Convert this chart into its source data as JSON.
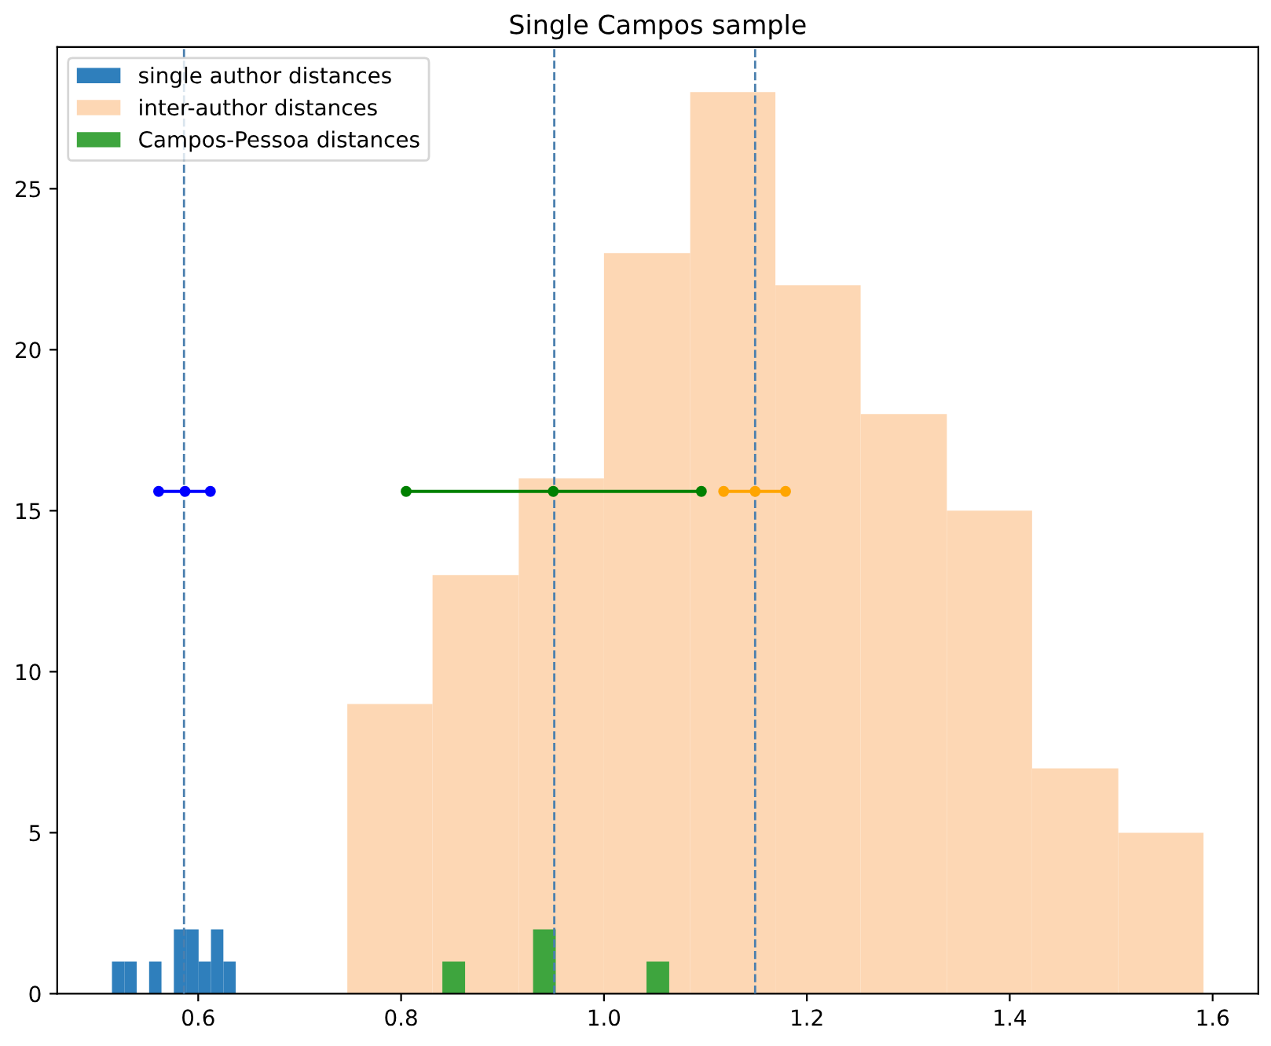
{
  "chart_data": {
    "type": "histogram",
    "title": "Single Campos sample",
    "series": [
      {
        "name": "single author distances",
        "color": "#2f7fbc",
        "bins": [
          0.515,
          0.5272,
          0.5394,
          0.5516,
          0.5638,
          0.576,
          0.5882,
          0.6004,
          0.6126,
          0.6248,
          0.637
        ],
        "values": [
          1,
          1,
          0,
          1,
          0,
          2,
          2,
          1,
          2,
          1
        ]
      },
      {
        "name": "inter-author distances",
        "color": "#fdd7b4",
        "bins": [
          0.747,
          0.831,
          0.916,
          1.0,
          1.085,
          1.169,
          1.253,
          1.338,
          1.422,
          1.507,
          1.591
        ],
        "values": [
          9,
          13,
          16,
          23,
          28,
          22,
          18,
          15,
          7,
          5
        ]
      },
      {
        "name": "Campos-Pessoa distances",
        "color": "#3ea53e",
        "bins": [
          0.8407,
          0.8631,
          0.8854,
          0.9078,
          0.9301,
          0.9525,
          0.9749,
          0.9972,
          1.0196,
          1.0419,
          1.0643
        ],
        "values": [
          1,
          0,
          0,
          0,
          2,
          0,
          0,
          0,
          0,
          1
        ]
      },
      {
        "type": "line",
        "color": "#0000ff",
        "marker": "circle",
        "x": [
          0.561,
          0.587,
          0.612
        ],
        "values": [
          15.6,
          15.6,
          15.6
        ]
      },
      {
        "type": "line",
        "color": "#008000",
        "marker": "circle",
        "x": [
          0.805,
          0.95,
          1.096
        ],
        "values": [
          15.6,
          15.6,
          15.6
        ]
      },
      {
        "type": "line",
        "color": "#ffa500",
        "marker": "circle",
        "x": [
          1.118,
          1.149,
          1.179
        ],
        "values": [
          15.6,
          15.6,
          15.6
        ]
      }
    ],
    "ref_lines": [
      {
        "axis": "x",
        "value": 0.586,
        "color": "#4a7fae",
        "line_style": "dashed"
      },
      {
        "axis": "x",
        "value": 0.951,
        "color": "#4a7fae",
        "line_style": "dashed"
      },
      {
        "axis": "x",
        "value": 1.149,
        "color": "#4a7fae",
        "line_style": "dashed"
      }
    ],
    "xlim": [
      0.461,
      1.645
    ],
    "ylim": [
      0,
      29.4
    ],
    "xticks": [
      0.6,
      0.8,
      {
        "value": 1.0,
        "label": "1.0"
      },
      1.2,
      1.4,
      1.6
    ],
    "yticks": [
      0,
      5,
      10,
      15,
      20,
      25
    ],
    "grid": false,
    "legend": "top left"
  }
}
